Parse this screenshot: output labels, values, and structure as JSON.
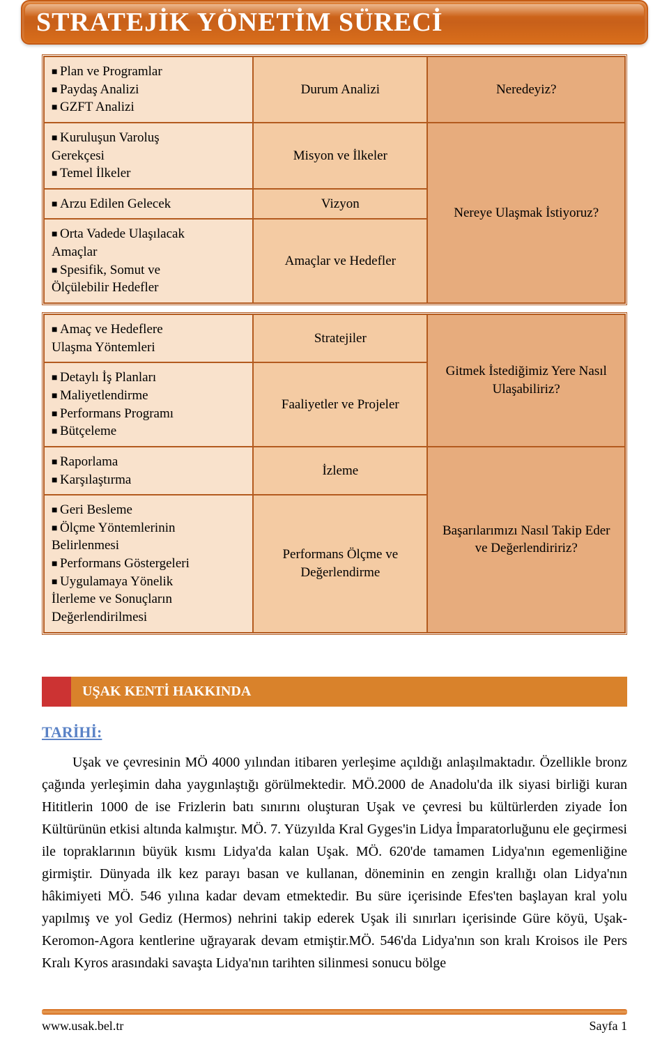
{
  "colors": {
    "banner_bg_top": "#d96e1b",
    "banner_bg_mid": "#c8601a",
    "banner_border": "#c45a14",
    "table_border": "#b35a1e",
    "col_left_bg": "#f9e2cc",
    "col_mid_bg": "#f4cba3",
    "col_right_bg": "#e7ac7d",
    "section_tab_bg": "#cc3333",
    "section_label_bg": "#d9822b",
    "subhead_color": "#5a82c6",
    "footer_rule": "#d46a1a"
  },
  "typography": {
    "title_fontsize": 38,
    "cell_fontsize": 19,
    "body_fontsize": 20,
    "subhead_fontsize": 22,
    "section_label_fontsize": 20
  },
  "banner": {
    "title": "STRATEJİK YÖNETİM SÜRECİ"
  },
  "table1": {
    "rows": [
      {
        "left": [
          "Plan ve Programlar",
          "Paydaş Analizi",
          "GZFT Analizi"
        ],
        "mid": "Durum Analizi",
        "right": "Neredeyiz?",
        "right_rowspan": 1
      }
    ],
    "group2_right": "Nereye Ulaşmak İstiyoruz?",
    "group2": [
      {
        "left": [
          "Kuruluşun Varoluş Gerekçesi",
          "Temel İlkeler"
        ],
        "mid": "Misyon ve İlkeler"
      },
      {
        "left": [
          "Arzu Edilen Gelecek"
        ],
        "mid": "Vizyon"
      },
      {
        "left": [
          "Orta Vadede Ulaşılacak Amaçlar",
          "Spesifik, Somut ve Ölçülebilir Hedefler"
        ],
        "mid": "Amaçlar ve Hedefler"
      }
    ]
  },
  "table2": {
    "group1_right": "Gitmek İstediğimiz Yere Nasıl Ulaşabiliriz?",
    "group1": [
      {
        "left": [
          "Amaç ve Hedeflere Ulaşma Yöntemleri"
        ],
        "mid": "Stratejiler"
      },
      {
        "left": [
          "Detaylı İş Planları",
          "Maliyetlendirme",
          "Performans Programı",
          "Bütçeleme"
        ],
        "mid": "Faaliyetler ve Projeler"
      }
    ],
    "group2_right": "Başarılarımızı Nasıl Takip Eder ve Değerlendiririz?",
    "group2": [
      {
        "left": [
          "Raporlama",
          "Karşılaştırma"
        ],
        "mid": "İzleme"
      },
      {
        "left": [
          "Geri Besleme",
          "Ölçme Yöntemlerinin Belirlenmesi",
          "Performans Göstergeleri",
          "Uygulamaya Yönelik İlerleme ve Sonuçların Değerlendirilmesi"
        ],
        "mid": "Performans Ölçme ve Değerlendirme"
      }
    ]
  },
  "section": {
    "label": "UŞAK KENTİ HAKKINDA"
  },
  "subhead": "TARİHİ:",
  "paragraph": "Uşak ve çevresinin MÖ 4000 yılından itibaren yerleşime açıldığı anlaşılmaktadır. Özellikle bronz çağında yerleşimin daha yaygınlaştığı görülmektedir. MÖ.2000 de Anadolu'da ilk siyasi birliği kuran Hititlerin 1000 de ise Frizlerin batı sınırını oluşturan Uşak ve çevresi bu kültürlerden ziyade İon Kültürünün etkisi altında kalmıştır. MÖ. 7. Yüzyılda Kral Gyges'in Lidya İmparatorluğunu ele geçirmesi ile topraklarının büyük kısmı Lidya'da kalan Uşak. MÖ. 620'de tamamen Lidya'nın egemenliğine girmiştir. Dünyada ilk kez parayı basan ve kullanan, döneminin en zengin krallığı olan Lidya'nın hâkimiyeti MÖ. 546 yılına kadar devam etmektedir. Bu süre içerisinde Efes'ten başlayan kral yolu yapılmış ve yol Gediz (Hermos) nehrini takip ederek Uşak ili sınırları içerisinde Güre köyü, Uşak-Keromon-Agora kentlerine uğrayarak devam etmiştir.MÖ. 546'da Lidya'nın son kralı Kroisos ile Pers Kralı Kyros arasındaki savaşta Lidya'nın tarihten silinmesi sonucu bölge",
  "footer": {
    "left": "www.usak.bel.tr",
    "right": "Sayfa 1"
  }
}
